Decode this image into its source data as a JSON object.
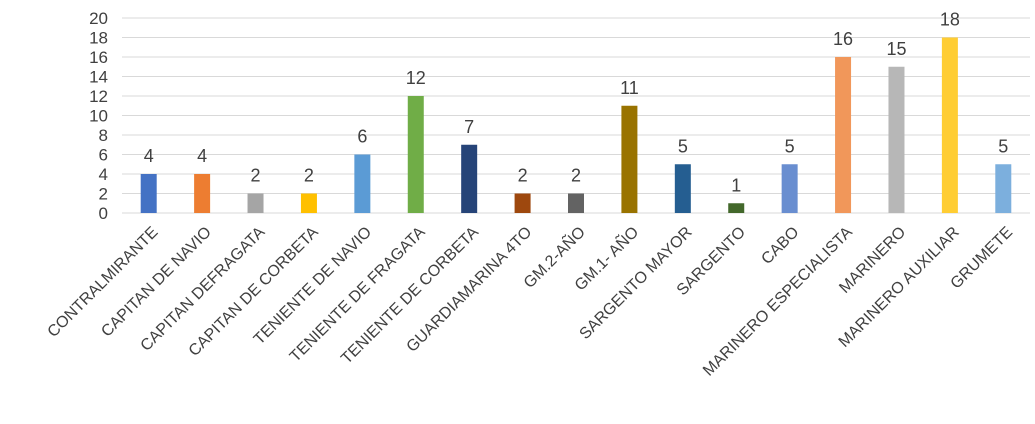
{
  "chart_data": {
    "type": "bar",
    "title": "",
    "xlabel": "",
    "ylabel": "",
    "ylim": [
      0,
      20
    ],
    "yticks": [
      "0",
      "2",
      "4",
      "6",
      "8",
      "10",
      "12",
      "14",
      "16",
      "18",
      "20"
    ],
    "grid": true,
    "legend": "none",
    "categories": [
      "CONTRALMIRANTE",
      "CAPITAN DE NAVIO",
      "CAPITAN DEFRAGATA",
      "CAPITAN DE CORBETA",
      "TENIENTE DE NAVIO",
      "TENIENTE DE FRAGATA",
      "TENIENTE DE CORBETA",
      "GUARDIAMARINA 4TO",
      "GM.2-AÑO",
      "GM.1- AÑO",
      "SARGENTO MAYOR",
      "SARGENTO",
      "CABO",
      "MARINERO ESPECIALISTA",
      "MARINERO",
      "MARINERO AUXILIAR",
      "GRUMETE"
    ],
    "values": [
      4,
      4,
      2,
      2,
      6,
      12,
      7,
      2,
      2,
      11,
      5,
      1,
      5,
      16,
      15,
      18,
      5
    ],
    "data_labels": [
      "4",
      "4",
      "2",
      "2",
      "6",
      "12",
      "7",
      "2",
      "2",
      "11",
      "5",
      "1",
      "5",
      "16",
      "15",
      "18",
      "5"
    ],
    "colors": [
      "#4472c4",
      "#ed7d31",
      "#a5a5a5",
      "#ffc000",
      "#5b9bd5",
      "#70ad47",
      "#264478",
      "#9e480e",
      "#636363",
      "#997300",
      "#255e91",
      "#43682b",
      "#698ed0",
      "#f1975a",
      "#b7b7b7",
      "#ffcd33",
      "#7cafdd"
    ]
  }
}
